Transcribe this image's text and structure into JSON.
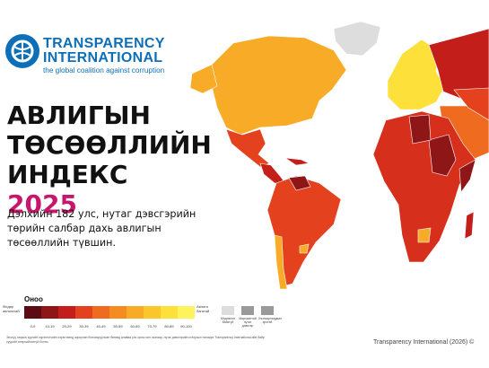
{
  "logo": {
    "line1": "TRANSPARENCY",
    "line2": "INTERNATIONAL",
    "tagline": "the global coalition against corruption"
  },
  "title": {
    "line1": "АВЛИГЫН",
    "line2": "ТӨСӨӨЛЛИЙН",
    "line3_text": "ИНДЕКС",
    "line3_year": "2025"
  },
  "subtitle": "Дэлхийн 182 улс, нутаг дэвсгэрийн төрийн салбар дахь авлигын төсөөллийн түвшин.",
  "legend": {
    "title": "Оноо",
    "low_label": "Өндөр авлигатай",
    "high_label": "Авлига багатай",
    "bins": [
      {
        "label": "0-9",
        "color": "#5c0a14"
      },
      {
        "label": "10-19",
        "color": "#8e1616"
      },
      {
        "label": "20-29",
        "color": "#c41e1a"
      },
      {
        "label": "30-39",
        "color": "#e4421f"
      },
      {
        "label": "40-49",
        "color": "#ef6b1f"
      },
      {
        "label": "50-59",
        "color": "#f48c22"
      },
      {
        "label": "60-69",
        "color": "#f8ab27"
      },
      {
        "label": "70-79",
        "color": "#fbc62c"
      },
      {
        "label": "80-89",
        "color": "#fde03a"
      },
      {
        "label": "90-100",
        "color": "#fef35c"
      }
    ],
    "extras": [
      {
        "label": "Мэдээлэл байхгүй",
        "color": "#dddddd"
      },
      {
        "label": "Маргаантай нутаг дэвсгэр",
        "color": "#9a9a9a"
      },
      {
        "label": "Хязгаарлагдмал эрхтэй",
        "color": "#9a9a9a"
      }
    ]
  },
  "note": "Энэхүү газрын зургийг хэрэглэгчийн хэрэглээнд зориулан боловсруулсан бөгөөд аливаа улс орны хил хязгаар, нутаг дэвсгэрийн статусын талаарх Transparency International-ийн байр суурийг илэрхийлэхгүй болно.",
  "source": "Transparency International (2026) ©",
  "map_colors": {
    "greenland": "#dddddd",
    "north_america": "#f8ab27",
    "mexico": "#e4421f",
    "central_america": "#c41e1a",
    "south_america": "#e4421f",
    "europe": "#fde03a",
    "russia": "#c41e1a",
    "africa": "#d62f1c",
    "middle_east": "#ef6b1f",
    "asia": "#e4421f",
    "dark": "#8e1616"
  }
}
